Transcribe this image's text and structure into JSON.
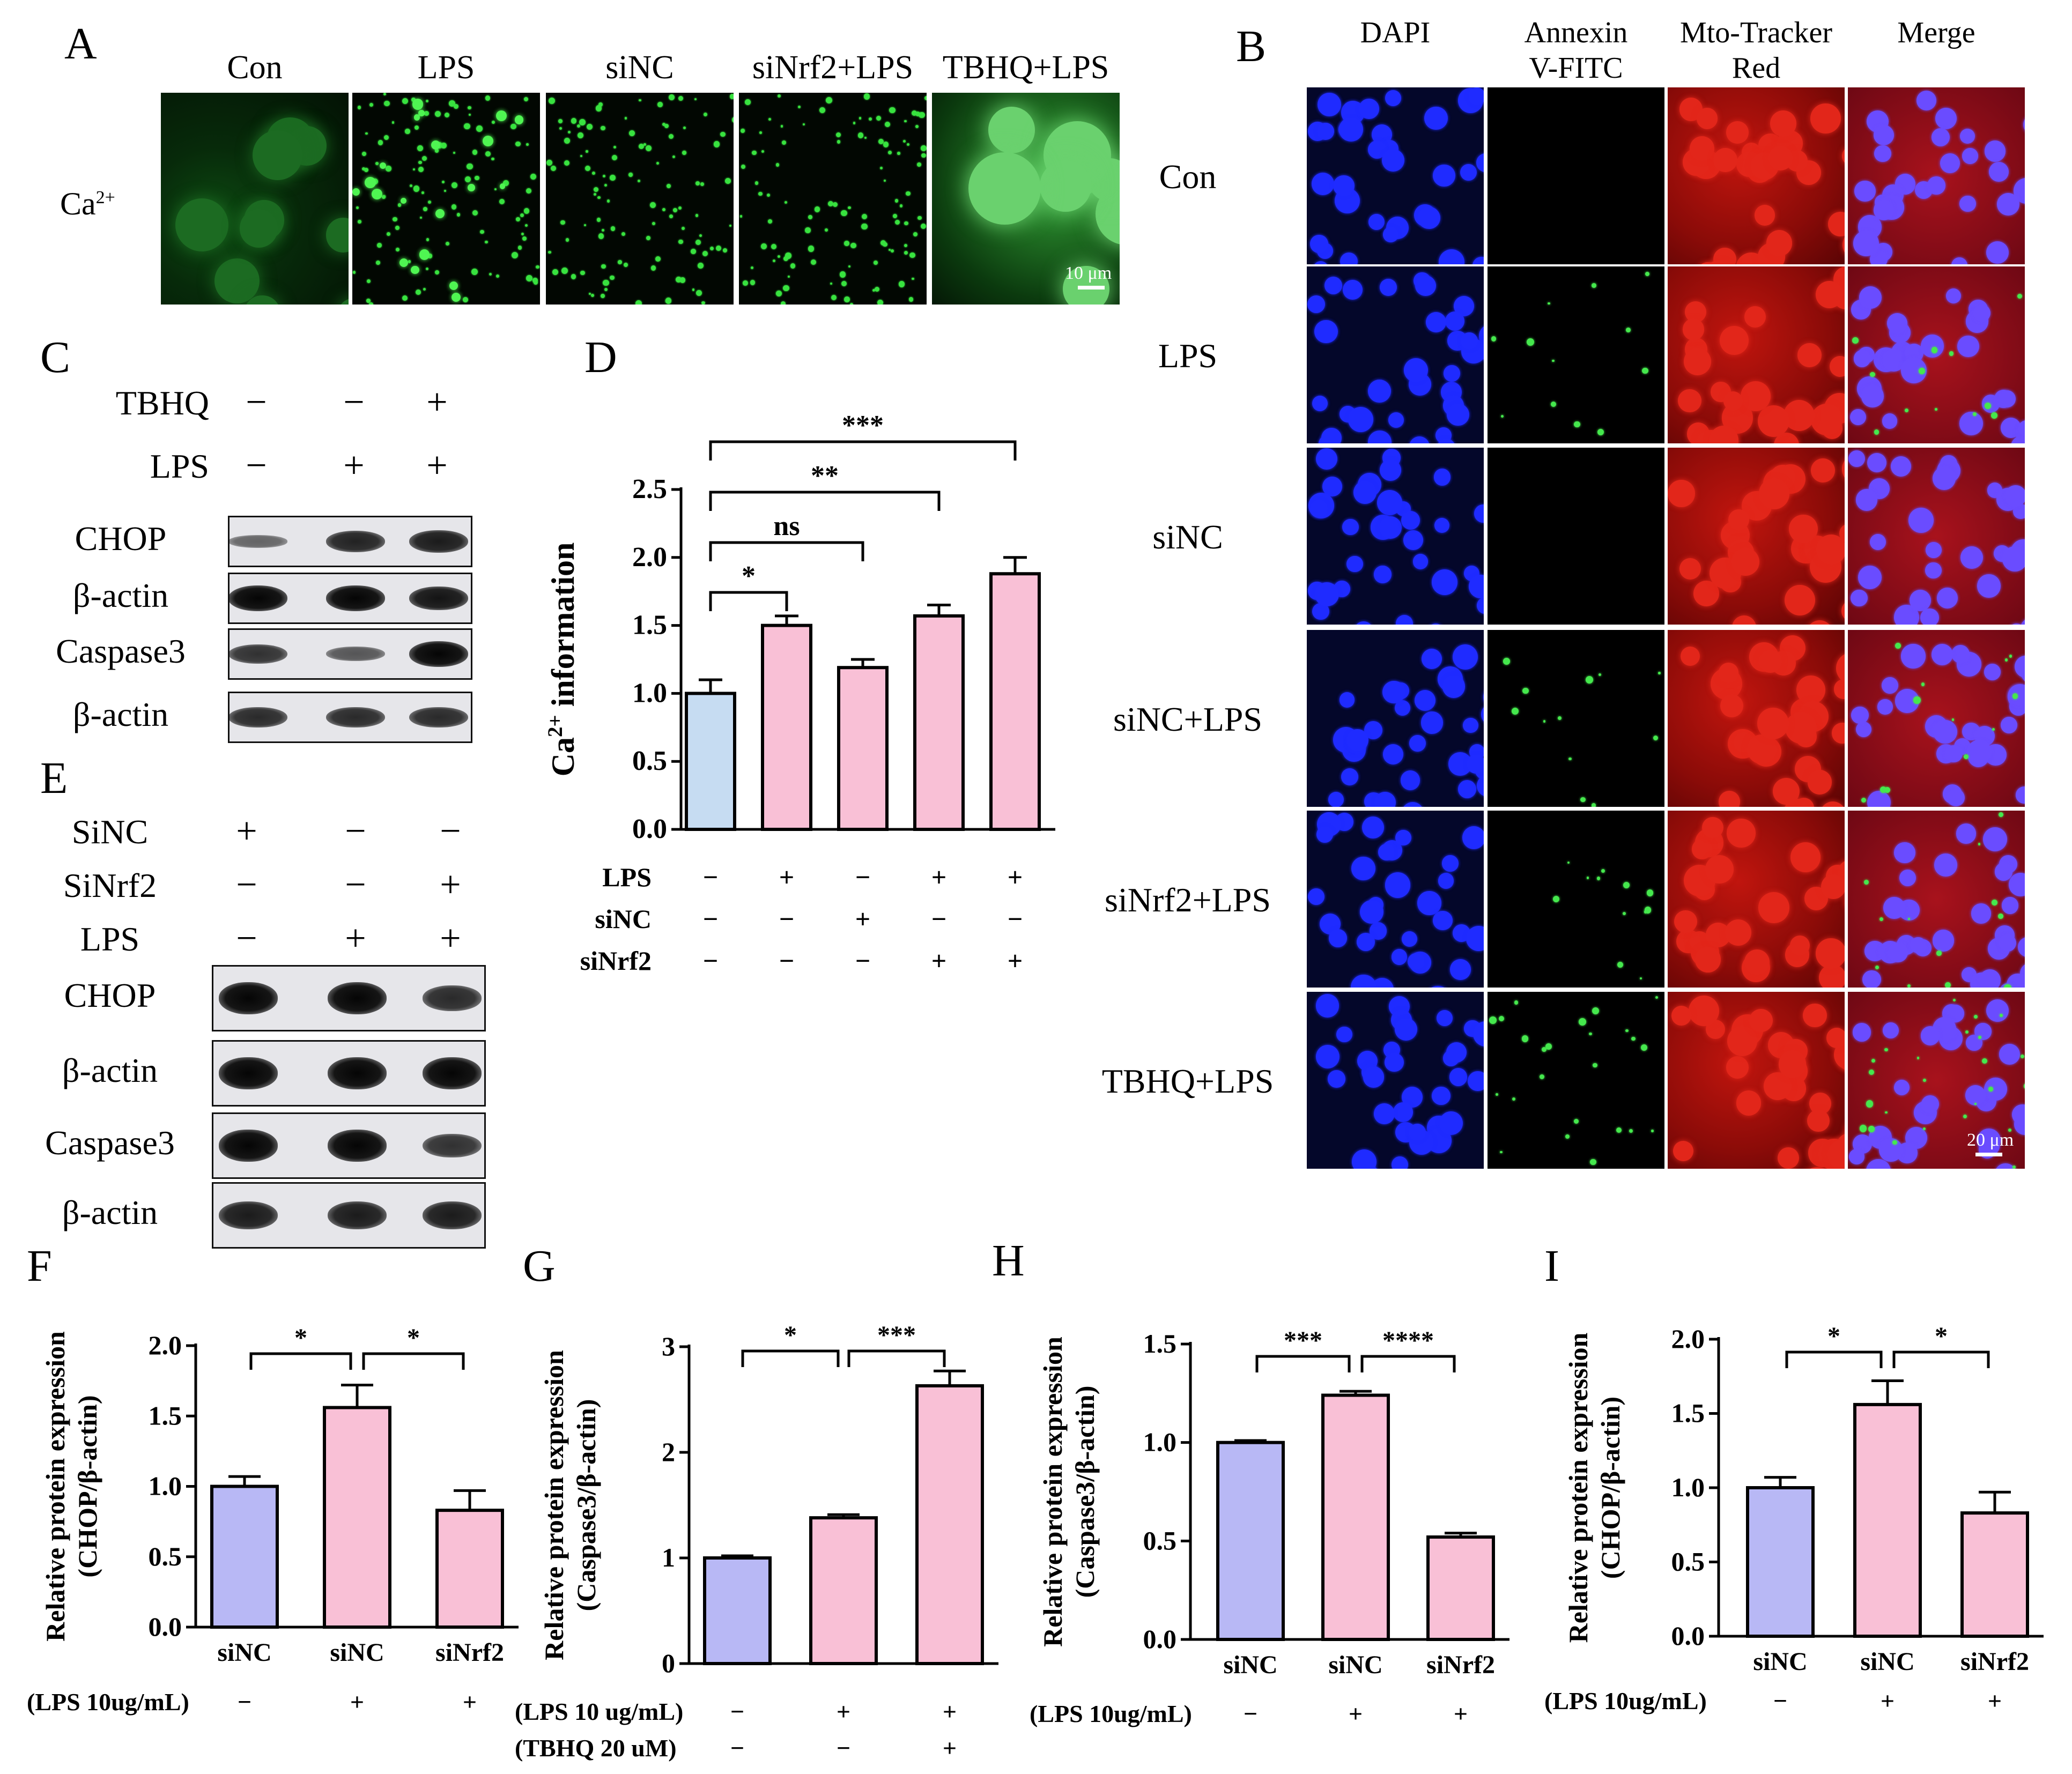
{
  "panel_letters": {
    "A": "A",
    "B": "B",
    "C": "C",
    "D": "D",
    "E": "E",
    "F": "F",
    "G": "G",
    "H": "H",
    "I": "I"
  },
  "panel_a": {
    "row_label": "Ca",
    "row_label_sup": "2+",
    "columns": [
      "Con",
      "LPS",
      "siNC",
      "siNrf2+LPS",
      "TBHQ+LPS"
    ],
    "scale_bar": "10 μm"
  },
  "panel_b": {
    "columns": [
      "DAPI",
      "Annexin\nV-FITC",
      "Mto-Tracker\nRed",
      "Merge"
    ],
    "rows": [
      "Con",
      "LPS",
      "siNC",
      "siNC+LPS",
      "siNrf2+LPS",
      "TBHQ+LPS"
    ],
    "scale_bar": "20 μm"
  },
  "panel_c": {
    "conditions": [
      {
        "name": "TBHQ",
        "signs": [
          "−",
          "−",
          "+"
        ]
      },
      {
        "name": "LPS",
        "signs": [
          "−",
          "+",
          "+"
        ]
      }
    ],
    "blots": [
      "CHOP",
      "β-actin",
      "Caspase3",
      "β-actin"
    ]
  },
  "panel_e": {
    "conditions": [
      {
        "name": "SiNC",
        "signs": [
          "+",
          "−",
          "−"
        ]
      },
      {
        "name": "SiNrf2",
        "signs": [
          "−",
          "−",
          "+"
        ]
      },
      {
        "name": "LPS",
        "signs": [
          "−",
          "+",
          "+"
        ]
      }
    ],
    "blots": [
      "CHOP",
      "β-actin",
      "Caspase3",
      "β-actin"
    ]
  },
  "colors": {
    "blue_bar": "#c6dcf2",
    "pink_bar": "#f9c0d6",
    "lavender_bar": "#b8b8f5"
  },
  "chart_data": [
    {
      "panel": "D",
      "type": "bar",
      "ylabel": "Ca2+ information",
      "ylim": [
        0,
        2.5
      ],
      "yticks": [
        "0.0",
        "0.5",
        "1.0",
        "1.5",
        "2.0",
        "2.5"
      ],
      "values": [
        1.0,
        1.5,
        1.19,
        1.57,
        1.88
      ],
      "errors": [
        0.1,
        0.07,
        0.06,
        0.08,
        0.12
      ],
      "colors": [
        "#c6dcf2",
        "#f9c0d6",
        "#f9c0d6",
        "#f9c0d6",
        "#f9c0d6"
      ],
      "conditions": [
        {
          "name": "LPS",
          "signs": [
            "−",
            "+",
            "−",
            "+",
            "+"
          ]
        },
        {
          "name": "siNC",
          "signs": [
            "−",
            "−",
            "+",
            "−",
            "−"
          ]
        },
        {
          "name": "siNrf2",
          "signs": [
            "−",
            "−",
            "−",
            "+",
            "+"
          ]
        }
      ],
      "significance": [
        {
          "from": 0,
          "to": 1,
          "label": "*"
        },
        {
          "from": 0,
          "to": 2,
          "label": "ns"
        },
        {
          "from": 0,
          "to": 3,
          "label": "**"
        },
        {
          "from": 0,
          "to": 4,
          "label": "***"
        }
      ]
    },
    {
      "panel": "F",
      "type": "bar",
      "ylabel": "Relative protein expression",
      "ylabel2": "(CHOP/β-actin)",
      "ylim": [
        0,
        2.0
      ],
      "yticks": [
        "0.0",
        "0.5",
        "1.0",
        "1.5",
        "2.0"
      ],
      "categories": [
        "siNC",
        "siNC",
        "siNrf2"
      ],
      "values": [
        1.0,
        1.56,
        0.83
      ],
      "errors": [
        0.07,
        0.16,
        0.14
      ],
      "colors": [
        "#b8b8f5",
        "#f9c0d6",
        "#f9c0d6"
      ],
      "conditions": [
        {
          "name": "(LPS 10ug/mL)",
          "signs": [
            "−",
            "+",
            "+"
          ]
        }
      ],
      "significance": [
        {
          "from": 0,
          "to": 1,
          "label": "*"
        },
        {
          "from": 1,
          "to": 2,
          "label": "*"
        }
      ]
    },
    {
      "panel": "G",
      "type": "bar",
      "ylabel": "Relative protein expression",
      "ylabel2": "(Caspase3/β-actin)",
      "ylim": [
        0,
        3
      ],
      "yticks": [
        "0",
        "1",
        "2",
        "3"
      ],
      "categories": [
        "",
        "",
        ""
      ],
      "values": [
        1.0,
        1.38,
        2.63
      ],
      "errors": [
        0.02,
        0.03,
        0.14
      ],
      "colors": [
        "#b8b8f5",
        "#f9c0d6",
        "#f9c0d6"
      ],
      "conditions": [
        {
          "name": "(LPS 10 ug/mL)",
          "signs": [
            "−",
            "+",
            "+"
          ]
        },
        {
          "name": "(TBHQ 20 uM)",
          "signs": [
            "−",
            "−",
            "+"
          ]
        }
      ],
      "significance": [
        {
          "from": 0,
          "to": 1,
          "label": "*"
        },
        {
          "from": 1,
          "to": 2,
          "label": "***"
        }
      ]
    },
    {
      "panel": "H",
      "type": "bar",
      "ylabel": "Relative protein expression",
      "ylabel2": "(Caspase3/β-actin)",
      "ylim": [
        0,
        1.5
      ],
      "yticks": [
        "0.0",
        "0.5",
        "1.0",
        "1.5"
      ],
      "categories": [
        "siNC",
        "siNC",
        "siNrf2"
      ],
      "values": [
        1.0,
        1.24,
        0.52
      ],
      "errors": [
        0.01,
        0.02,
        0.02
      ],
      "colors": [
        "#b8b8f5",
        "#f9c0d6",
        "#f9c0d6"
      ],
      "conditions": [
        {
          "name": "(LPS 10ug/mL)",
          "signs": [
            "−",
            "+",
            "+"
          ]
        }
      ],
      "significance": [
        {
          "from": 0,
          "to": 1,
          "label": "***"
        },
        {
          "from": 1,
          "to": 2,
          "label": "****"
        }
      ]
    },
    {
      "panel": "I",
      "type": "bar",
      "ylabel": "Relative protein expression",
      "ylabel2": "(CHOP/β-actin)",
      "ylim": [
        0,
        2.0
      ],
      "yticks": [
        "0.0",
        "0.5",
        "1.0",
        "1.5",
        "2.0"
      ],
      "categories": [
        "siNC",
        "siNC",
        "siNrf2"
      ],
      "values": [
        1.0,
        1.56,
        0.83
      ],
      "errors": [
        0.07,
        0.16,
        0.14
      ],
      "colors": [
        "#b8b8f5",
        "#f9c0d6",
        "#f9c0d6"
      ],
      "conditions": [
        {
          "name": "(LPS 10ug/mL)",
          "signs": [
            "−",
            "+",
            "+"
          ]
        }
      ],
      "significance": [
        {
          "from": 0,
          "to": 1,
          "label": "*"
        },
        {
          "from": 1,
          "to": 2,
          "label": "*"
        }
      ]
    }
  ]
}
